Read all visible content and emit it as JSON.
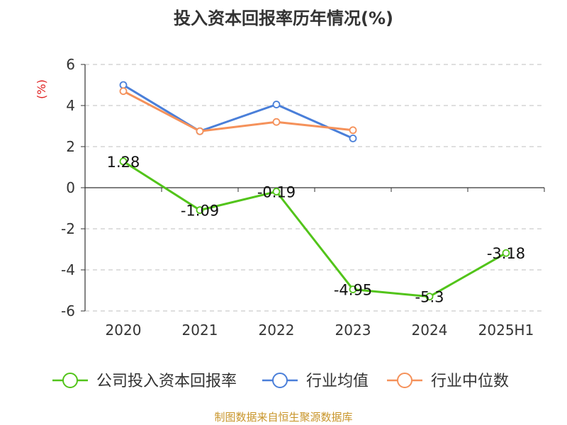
{
  "chart_data": {
    "type": "line",
    "title": "投入资本回报率历年情况(%)",
    "ylabel": "(%)",
    "categories": [
      "2020",
      "2021",
      "2022",
      "2023",
      "2024",
      "2025H1"
    ],
    "ylim": [
      -6,
      6
    ],
    "yticks": [
      6,
      4,
      2,
      0,
      -2,
      -4,
      -6
    ],
    "grid": true,
    "legend_position": "bottom",
    "series": [
      {
        "name": "公司投入资本回报率",
        "color": "#52c41a",
        "values": [
          1.28,
          -1.09,
          -0.19,
          -4.95,
          -5.3,
          -3.18
        ],
        "labels": [
          "1.28",
          "-1.09",
          "-0.19",
          "-4.95",
          "-5.3",
          "-3.18"
        ]
      },
      {
        "name": "行业均值",
        "color": "#4a7fd9",
        "values": [
          5.0,
          2.75,
          4.05,
          2.4,
          null,
          null
        ]
      },
      {
        "name": "行业中位数",
        "color": "#f5915a",
        "values": [
          4.7,
          2.75,
          3.2,
          2.8,
          null,
          null
        ]
      }
    ],
    "source": "制图数据来自恒生聚源数据库"
  },
  "colors": {
    "title": "#333333",
    "ylabel": "#e02020",
    "axis": "#333333",
    "grid": "#cccccc",
    "tick_text": "#333333",
    "source": "#c8952a"
  }
}
